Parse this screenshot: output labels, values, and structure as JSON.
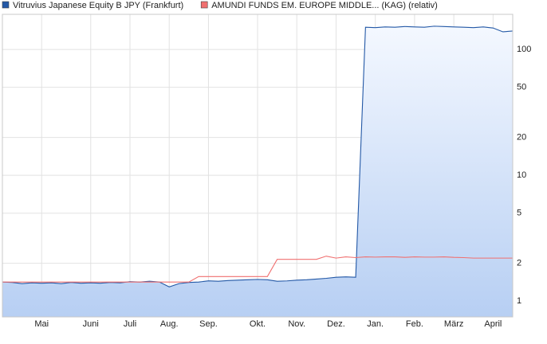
{
  "chart_data": {
    "type": "line",
    "log_y": true,
    "grid": true,
    "legend": "top-left",
    "ylim": [
      0.75,
      190
    ],
    "yticks": [
      1,
      2,
      5,
      10,
      20,
      50,
      100
    ],
    "categories": [
      null,
      null,
      null,
      null,
      "Mai",
      null,
      null,
      null,
      null,
      "Juni",
      null,
      null,
      null,
      "Juli",
      null,
      null,
      null,
      "Aug.",
      null,
      null,
      null,
      "Sep.",
      null,
      null,
      null,
      null,
      "Okt.",
      null,
      null,
      null,
      "Nov.",
      null,
      null,
      null,
      "Dez.",
      null,
      null,
      null,
      "Jan.",
      null,
      null,
      null,
      "Feb.",
      null,
      null,
      null,
      "März",
      null,
      null,
      null,
      "April",
      null,
      null
    ],
    "series": [
      {
        "name": "Vitruvius Japanese Equity B JPY (Frankfurt)",
        "color": "#2358a6",
        "area": true,
        "values": [
          1.42,
          1.41,
          1.38,
          1.4,
          1.39,
          1.4,
          1.38,
          1.41,
          1.39,
          1.4,
          1.39,
          1.41,
          1.4,
          1.43,
          1.42,
          1.44,
          1.42,
          1.3,
          1.38,
          1.41,
          1.42,
          1.45,
          1.44,
          1.46,
          1.47,
          1.48,
          1.49,
          1.48,
          1.44,
          1.45,
          1.47,
          1.48,
          1.5,
          1.52,
          1.55,
          1.56,
          1.55,
          150,
          149,
          151,
          150,
          152,
          151,
          150,
          153,
          152,
          151,
          150,
          149,
          151,
          148,
          138,
          140
        ]
      },
      {
        "name": "AMUNDI FUNDS EM. EUROPE MIDDLE... (KAG) (relativ)",
        "color": "#f07070",
        "values": [
          1.42,
          1.42,
          1.42,
          1.42,
          1.42,
          1.42,
          1.42,
          1.42,
          1.42,
          1.42,
          1.42,
          1.42,
          1.42,
          1.42,
          1.42,
          1.42,
          1.42,
          1.42,
          1.42,
          1.42,
          1.57,
          1.57,
          1.57,
          1.57,
          1.57,
          1.57,
          1.57,
          1.57,
          2.15,
          2.15,
          2.15,
          2.15,
          2.15,
          2.28,
          2.2,
          2.25,
          2.22,
          2.25,
          2.24,
          2.25,
          2.25,
          2.23,
          2.25,
          2.24,
          2.24,
          2.25,
          2.23,
          2.22,
          2.2,
          2.2,
          2.2,
          2.2,
          2.2
        ]
      }
    ]
  }
}
